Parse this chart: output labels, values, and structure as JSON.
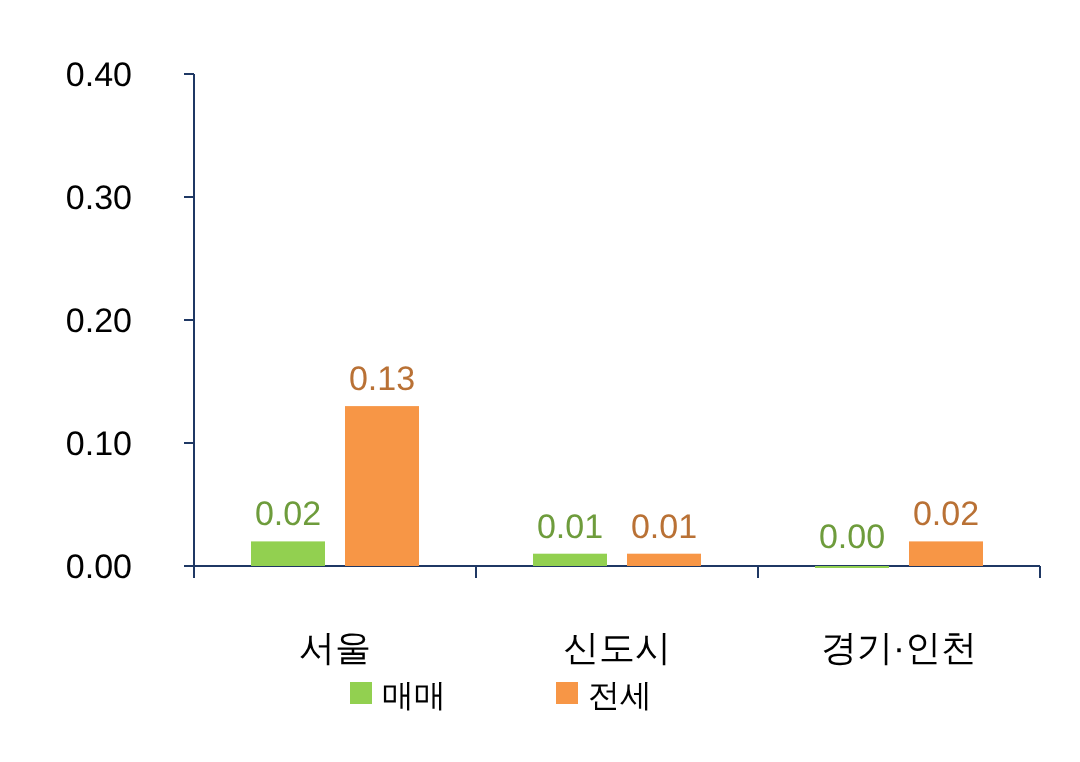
{
  "chart_data": {
    "type": "bar",
    "categories": [
      "서울",
      "신도시",
      "경기·인천"
    ],
    "series": [
      {
        "name": "매매",
        "color": "#92d050",
        "values": [
          0.02,
          0.01,
          0.0
        ],
        "value_labels": [
          "0.02",
          "0.01",
          "0.00"
        ]
      },
      {
        "name": "전세",
        "color": "#f79646",
        "values": [
          0.13,
          0.01,
          0.02
        ],
        "value_labels": [
          "0.13",
          "0.01",
          "0.02"
        ]
      }
    ],
    "ylim": [
      0,
      0.4
    ],
    "yticks": [
      {
        "value": 0,
        "label": "0.00"
      },
      {
        "value": 0.1,
        "label": "0.10"
      },
      {
        "value": 0.2,
        "label": "0.20"
      },
      {
        "value": 0.3,
        "label": "0.30"
      },
      {
        "value": 0.4,
        "label": "0.40"
      }
    ],
    "grid": false,
    "legend": "bottom"
  }
}
